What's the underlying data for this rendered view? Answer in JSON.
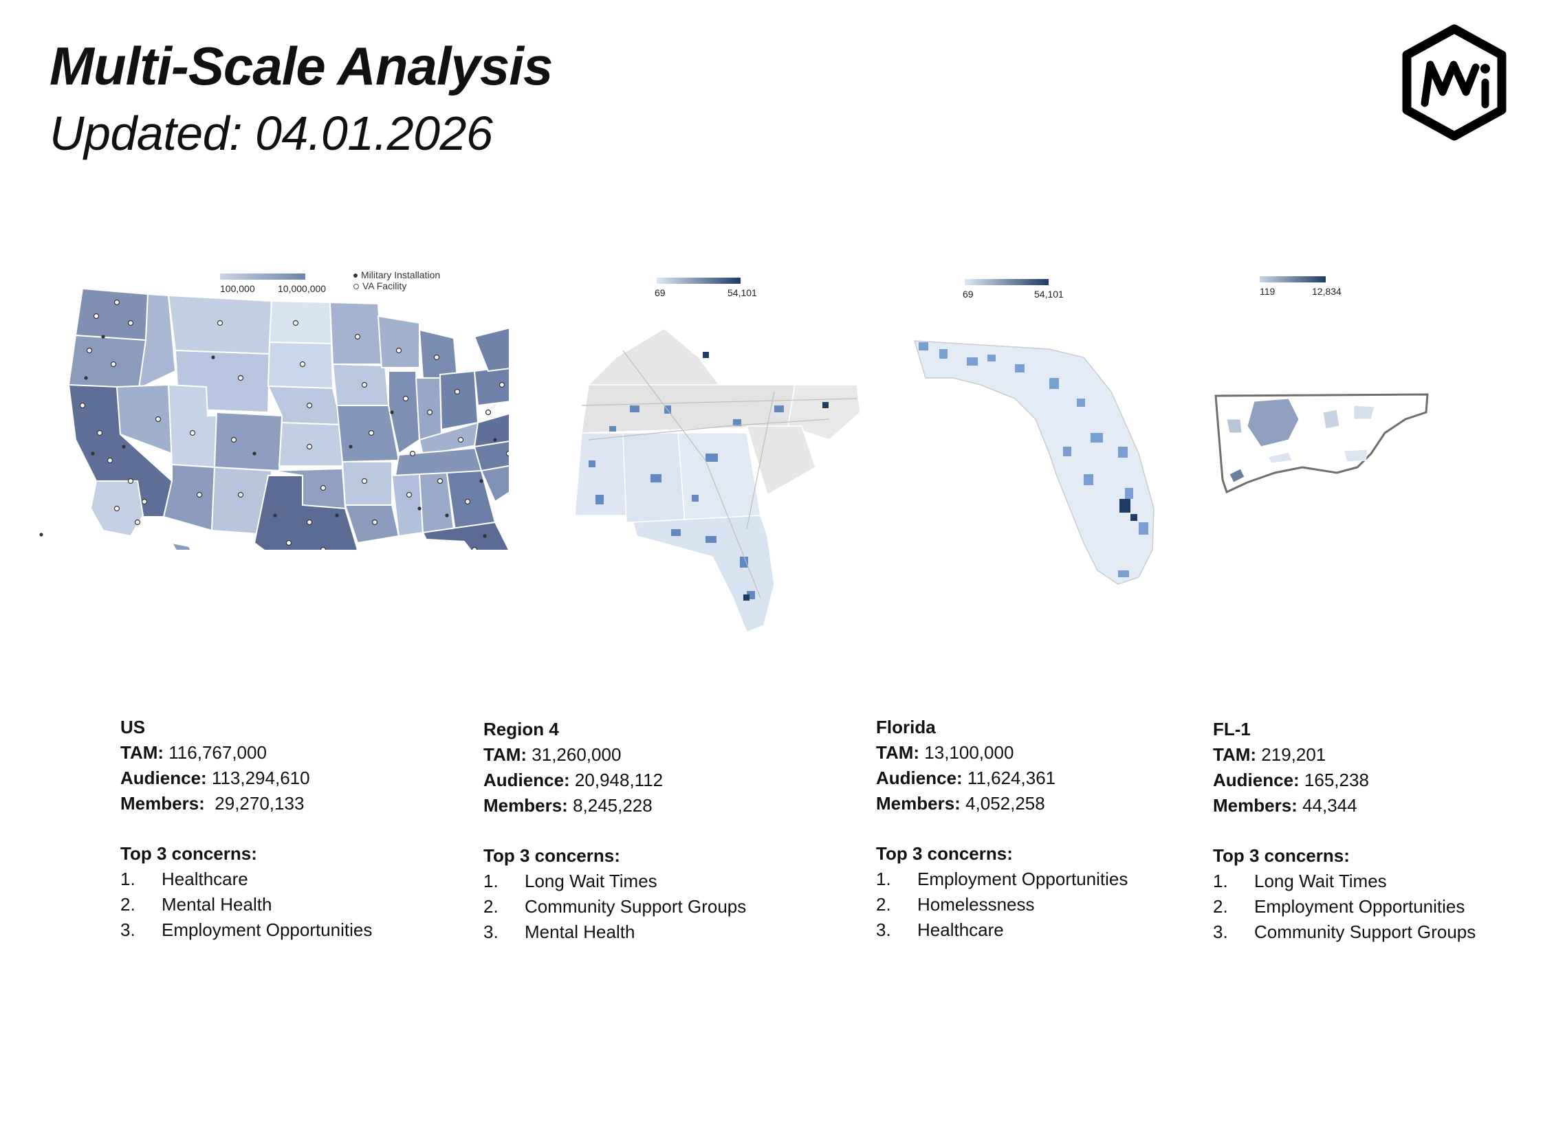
{
  "header": {
    "title": "Multi-Scale Analysis",
    "subtitle": "Updated: 04.01.2026"
  },
  "logo": {
    "icon": "mwi-hexagon-logo",
    "text": "MWi"
  },
  "maps": {
    "us": {
      "legend_min": "100,000",
      "legend_max": "10,000,000",
      "legend_key_military": "Military Installation",
      "legend_key_va": "VA Facility"
    },
    "region4": {
      "legend_min": "69",
      "legend_max": "54,101"
    },
    "florida": {
      "legend_min": "69",
      "legend_max": "54,101"
    },
    "fl1": {
      "legend_min": "119",
      "legend_max": "12,834"
    }
  },
  "colors": {
    "choropleth_low": "#dde8f5",
    "choropleth_high": "#1f3c64",
    "us_fill_mid": "#8b9cbc",
    "region_fill": "#e4e4e4",
    "text": "#111111"
  },
  "panels": [
    {
      "name": "US",
      "tam_label": "TAM:",
      "tam": "116,767,000",
      "audience_label": "Audience:",
      "audience": "113,294,610",
      "members_label": "Members:",
      "members": " 29,270,133",
      "concerns_title": "Top 3 concerns:",
      "concerns": [
        {
          "num": "1.",
          "text": "Healthcare"
        },
        {
          "num": "2.",
          "text": "Mental Health"
        },
        {
          "num": "3.",
          "text": "Employment Opportunities"
        }
      ]
    },
    {
      "name": "Region 4",
      "tam_label": "TAM:",
      "tam": "31,260,000",
      "audience_label": "Audience:",
      "audience": "20,948,112",
      "members_label": "Members:",
      "members": "8,245,228",
      "concerns_title": "Top 3 concerns:",
      "concerns": [
        {
          "num": "1.",
          "text": "Long Wait Times"
        },
        {
          "num": "2.",
          "text": "Community Support Groups"
        },
        {
          "num": "3.",
          "text": "Mental Health"
        }
      ]
    },
    {
      "name": "Florida",
      "tam_label": "TAM:",
      "tam": "13,100,000",
      "audience_label": "Audience:",
      "audience": "11,624,361",
      "members_label": "Members:",
      "members": "4,052,258",
      "concerns_title": "Top 3 concerns:",
      "concerns": [
        {
          "num": "1.",
          "text": "Employment Opportunities"
        },
        {
          "num": "2.",
          "text": "Homelessness"
        },
        {
          "num": "3.",
          "text": "Healthcare"
        }
      ]
    },
    {
      "name": "FL-1",
      "tam_label": "TAM:",
      "tam": "219,201",
      "audience_label": "Audience:",
      "audience": "165,238",
      "members_label": "Members:",
      "members": "44,344",
      "concerns_title": "Top 3 concerns:",
      "concerns": [
        {
          "num": "1.",
          "text": "Long Wait Times"
        },
        {
          "num": "2.",
          "text": "Employment Opportunities"
        },
        {
          "num": "3.",
          "text": "Community Support Groups"
        }
      ]
    }
  ]
}
